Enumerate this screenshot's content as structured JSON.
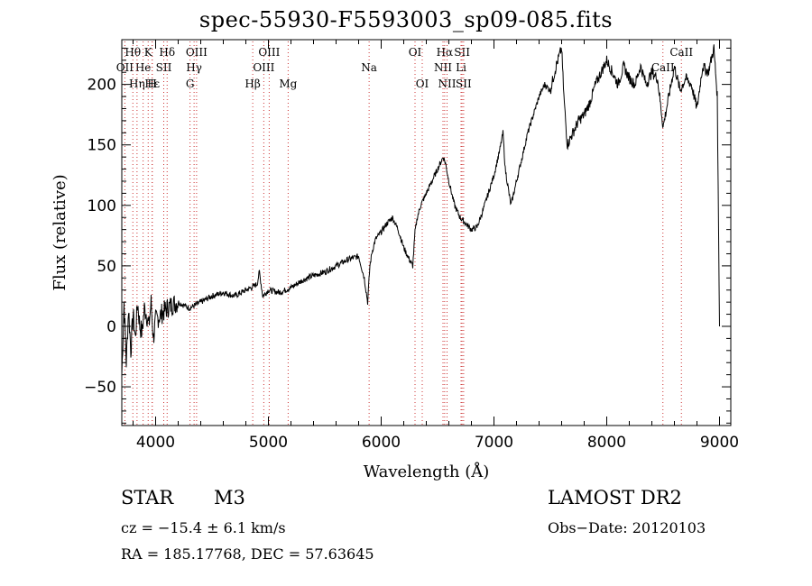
{
  "chart_data": {
    "type": "line",
    "title": "spec-55930-F5593003_sp09-085.fits",
    "xlabel": "Wavelength (Å)",
    "ylabel": "Flux (relative)",
    "xlim": [
      3700,
      9100
    ],
    "ylim": [
      -82,
      237
    ],
    "xticks": [
      4000,
      5000,
      6000,
      7000,
      8000,
      9000
    ],
    "yticks": [
      -50,
      0,
      50,
      100,
      150,
      200
    ],
    "grid": false,
    "line_color": "#000000",
    "marker_color": "#cc3333",
    "series": [
      {
        "x": [
          3700,
          3720,
          3740,
          3760,
          3780,
          3800,
          3820,
          3840,
          3860,
          3880,
          3900,
          3920,
          3940,
          3960,
          3980,
          4000,
          4050,
          4100,
          4150,
          4200,
          4300,
          4400,
          4500,
          4600,
          4700,
          4800,
          4850,
          4900,
          4920,
          4950,
          5000,
          5100,
          5200,
          5300,
          5400,
          5500,
          5600,
          5700,
          5800,
          5850,
          5880,
          5900,
          5920,
          5950,
          6000,
          6050,
          6100,
          6150,
          6200,
          6250,
          6280,
          6300,
          6320,
          6350,
          6400,
          6450,
          6500,
          6550,
          6570,
          6600,
          6650,
          6700,
          6750,
          6800,
          6850,
          6900,
          6950,
          7000,
          7050,
          7080,
          7100,
          7150,
          7200,
          7250,
          7300,
          7350,
          7400,
          7450,
          7500,
          7550,
          7600,
          7620,
          7650,
          7700,
          7750,
          7800,
          7850,
          7900,
          7950,
          8000,
          8050,
          8100,
          8150,
          8200,
          8250,
          8300,
          8350,
          8400,
          8450,
          8500,
          8550,
          8600,
          8650,
          8700,
          8750,
          8800,
          8850,
          8900,
          8950,
          8980,
          9000
        ],
        "y": [
          -40,
          20,
          -30,
          15,
          -20,
          10,
          -10,
          20,
          0,
          -5,
          15,
          10,
          0,
          20,
          -10,
          5,
          10,
          15,
          18,
          20,
          15,
          20,
          25,
          28,
          25,
          30,
          32,
          35,
          45,
          25,
          30,
          28,
          32,
          38,
          42,
          45,
          50,
          55,
          58,
          40,
          20,
          50,
          62,
          72,
          78,
          85,
          90,
          80,
          65,
          55,
          50,
          78,
          90,
          100,
          110,
          120,
          130,
          140,
          135,
          120,
          100,
          90,
          85,
          80,
          82,
          95,
          110,
          125,
          145,
          160,
          130,
          100,
          120,
          140,
          160,
          175,
          190,
          200,
          195,
          215,
          230,
          190,
          150,
          160,
          170,
          175,
          185,
          200,
          210,
          220,
          210,
          200,
          215,
          205,
          200,
          215,
          200,
          210,
          205,
          165,
          190,
          215,
          195,
          205,
          200,
          180,
          215,
          210,
          230,
          190,
          0
        ]
      }
    ],
    "line_markers": [
      {
        "label": "Hθ",
        "row": 1,
        "x": 3798
      },
      {
        "label": "K",
        "row": 1,
        "x": 3934
      },
      {
        "label": "Hδ",
        "row": 1,
        "x": 4102
      },
      {
        "label": "OII",
        "row": 2,
        "x": 3727
      },
      {
        "label": "He",
        "row": 2,
        "x": 3889
      },
      {
        "label": "SII",
        "row": 2,
        "x": 4072
      },
      {
        "label": "Hε",
        "row": 3,
        "x": 3970
      },
      {
        "label": "Hη",
        "row": 3,
        "x": 3835
      },
      {
        "label": "H",
        "row": 3,
        "x": 3969
      },
      {
        "label": "OIII",
        "row": 1,
        "x": 4363
      },
      {
        "label": "Hγ",
        "row": 2,
        "x": 4341
      },
      {
        "label": "G",
        "row": 3,
        "x": 4305
      },
      {
        "label": "OIII",
        "row": 1,
        "x": 5007
      },
      {
        "label": "OIII",
        "row": 2,
        "x": 4959
      },
      {
        "label": "Hβ",
        "row": 3,
        "x": 4861
      },
      {
        "label": "Mg",
        "row": 3,
        "x": 5175
      },
      {
        "label": "Na",
        "row": 2,
        "x": 5893
      },
      {
        "label": "OI",
        "row": 1,
        "x": 6300
      },
      {
        "label": "OI",
        "row": 3,
        "x": 6364
      },
      {
        "label": "Hα",
        "row": 1,
        "x": 6563
      },
      {
        "label": "SII",
        "row": 1,
        "x": 6717
      },
      {
        "label": "NII",
        "row": 2,
        "x": 6548
      },
      {
        "label": "Li",
        "row": 2,
        "x": 6708
      },
      {
        "label": "NII",
        "row": 3,
        "x": 6584
      },
      {
        "label": "SII",
        "row": 3,
        "x": 6731
      },
      {
        "label": "CaII",
        "row": 1,
        "x": 8662
      },
      {
        "label": "CaII",
        "row": 2,
        "x": 8498
      }
    ]
  },
  "footer": {
    "object_type": "STAR",
    "subclass": "M3",
    "survey": "LAMOST DR2",
    "redshift": "cz = −15.4 ± 6.1 km/s",
    "obs_date": "Obs−Date: 20120103",
    "coords": "RA = 185.17768, DEC =  57.63645"
  }
}
